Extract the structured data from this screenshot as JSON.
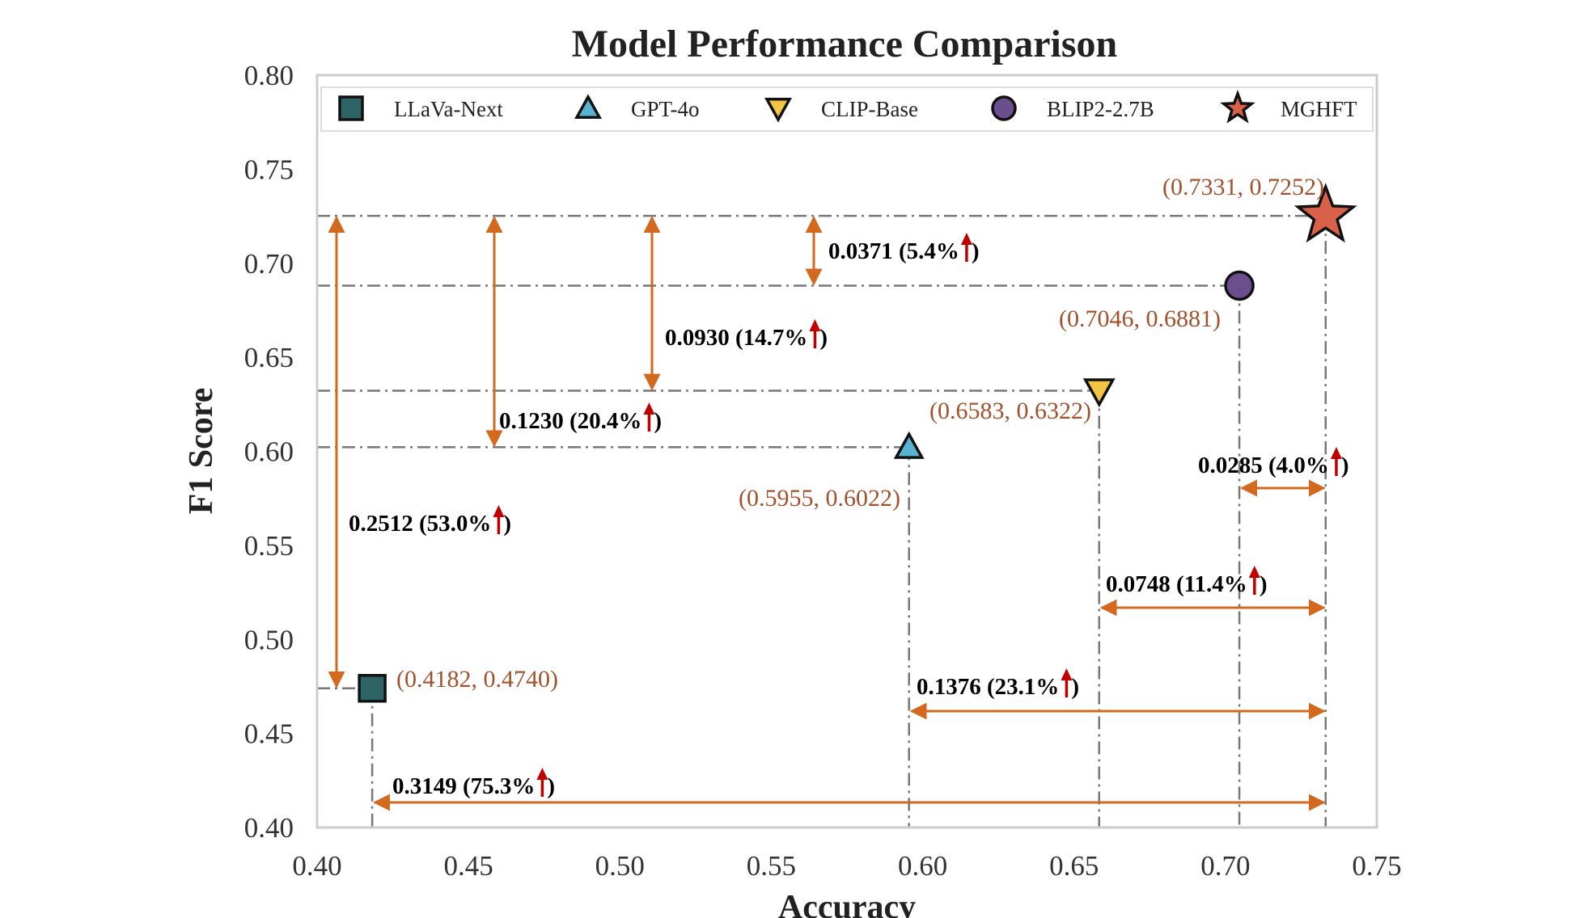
{
  "chart_data": {
    "type": "scatter",
    "title": "Model Performance Comparison",
    "xlabel": "Accuracy",
    "ylabel": "F1 Score",
    "xlim": [
      0.4,
      0.75
    ],
    "ylim": [
      0.4,
      0.8
    ],
    "xticks": [
      "0.40",
      "0.45",
      "0.50",
      "0.55",
      "0.60",
      "0.65",
      "0.70",
      "0.75"
    ],
    "yticks": [
      "0.40",
      "0.45",
      "0.50",
      "0.55",
      "0.60",
      "0.65",
      "0.70",
      "0.75",
      "0.80"
    ],
    "legend_position": "top",
    "grid": false,
    "colors": {
      "arrow": "#D2691E",
      "coord_text": "#A0522D",
      "up_arrow": "#C00000",
      "guide": "#777777",
      "frame": "#cccccc"
    },
    "points": [
      {
        "id": "llava",
        "name": "LLaVa-Next",
        "x": 0.4182,
        "y": 0.474,
        "marker": "square",
        "color": "#2F6467",
        "label": "(0.4182, 0.4740)"
      },
      {
        "id": "gpt4o",
        "name": "GPT-4o",
        "x": 0.5955,
        "y": 0.6022,
        "marker": "triangle-up",
        "color": "#5AB4D1",
        "label": "(0.5955, 0.6022)"
      },
      {
        "id": "clip",
        "name": "CLIP-Base",
        "x": 0.6583,
        "y": 0.6322,
        "marker": "triangle-down",
        "color": "#F4C542",
        "label": "(0.6583, 0.6322)"
      },
      {
        "id": "blip2",
        "name": "BLIP2-2.7B",
        "x": 0.7046,
        "y": 0.6881,
        "marker": "circle",
        "color": "#6B4E8E",
        "label": "(0.7046, 0.6881)"
      },
      {
        "id": "mghft",
        "name": "MGHFT",
        "x": 0.7331,
        "y": 0.7252,
        "marker": "star",
        "color": "#D9614A",
        "label": "(0.7331, 0.7252)"
      }
    ],
    "f1_differences": [
      {
        "target": "blip2",
        "text": "0.0371 (5.4%",
        "close": ")"
      },
      {
        "target": "clip",
        "text": "0.0930 (14.7%",
        "close": ")"
      },
      {
        "target": "gpt4o",
        "text": "0.1230 (20.4%",
        "close": ")"
      },
      {
        "target": "llava",
        "text": "0.2512 (53.0%",
        "close": ")"
      }
    ],
    "accuracy_differences": [
      {
        "target": "blip2",
        "text": "0.0285 (4.0%",
        "close": ")"
      },
      {
        "target": "clip",
        "text": "0.0748 (11.4%",
        "close": ")"
      },
      {
        "target": "gpt4o",
        "text": "0.1376 (23.1%",
        "close": ")"
      },
      {
        "target": "llava",
        "text": "0.3149 (75.3%",
        "close": ")"
      }
    ]
  }
}
